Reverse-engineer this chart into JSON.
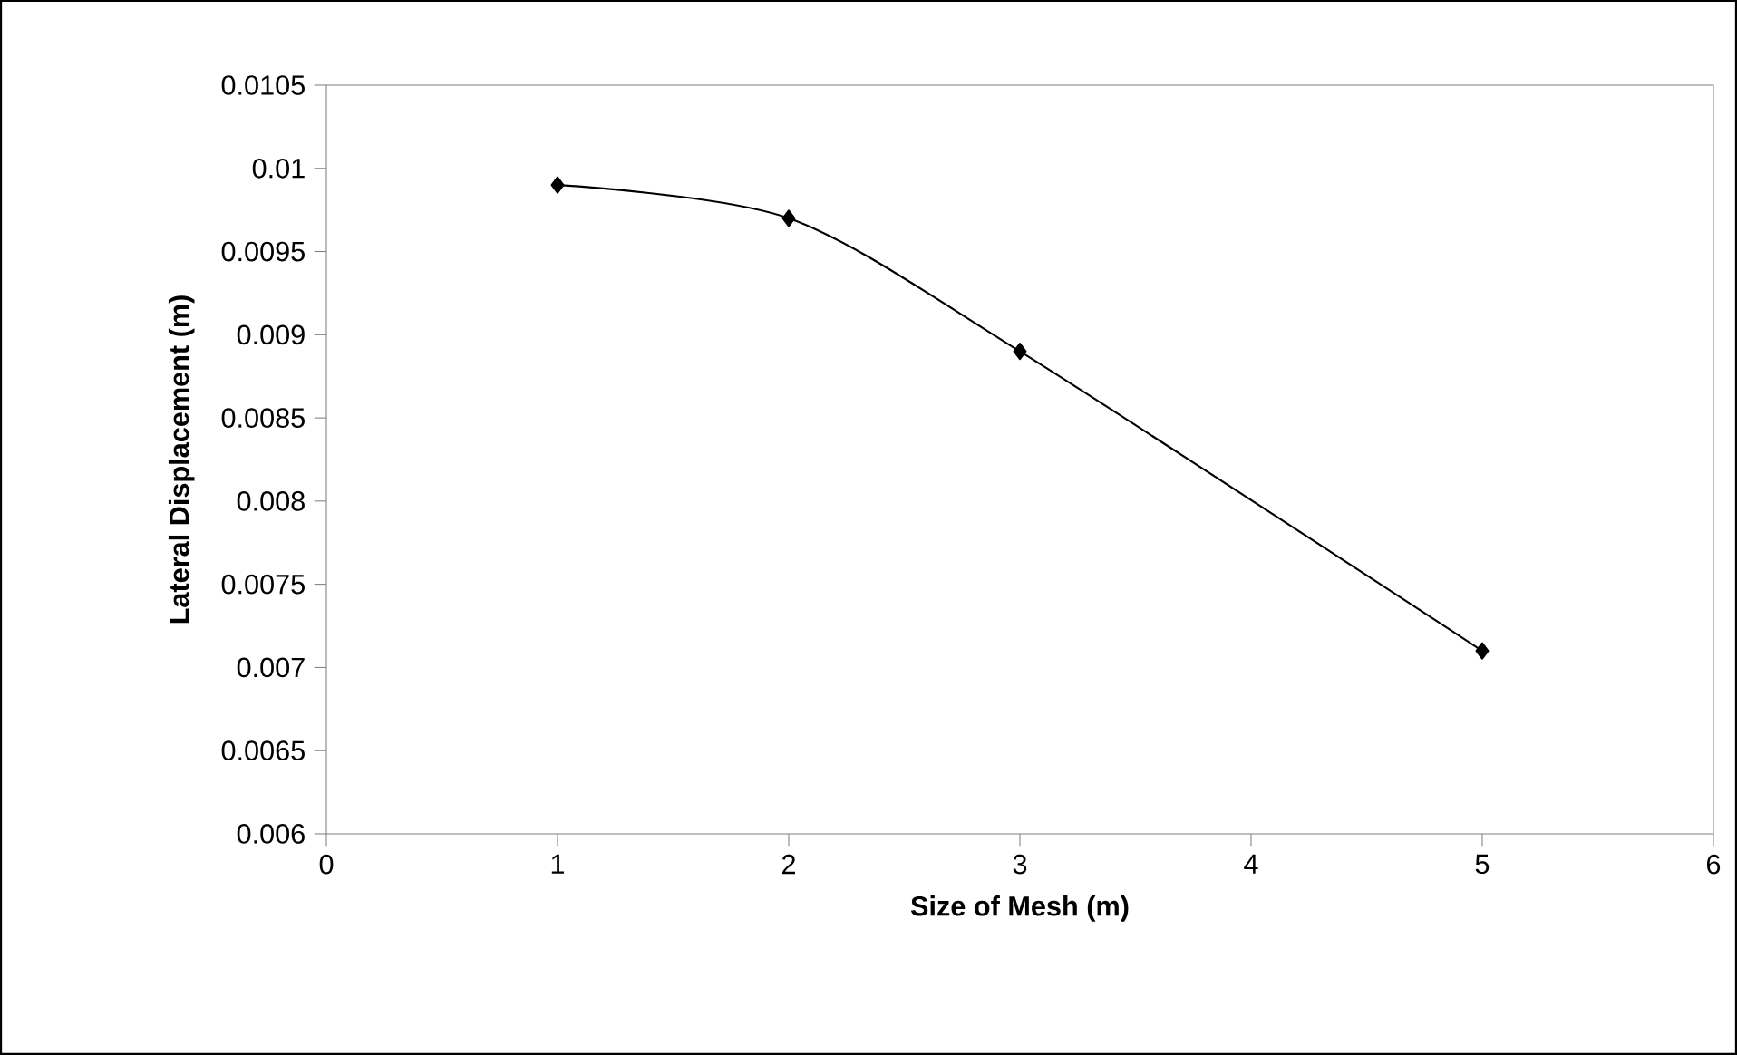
{
  "chart_data": {
    "type": "line",
    "xlabel": "Size of Mesh (m)",
    "ylabel": "Lateral Displacement (m)",
    "x": [
      1,
      2,
      3,
      5
    ],
    "series": [
      {
        "color": "#000000",
        "values": [
          0.0099,
          0.0097,
          0.0089,
          0.0071
        ]
      }
    ],
    "xlim": [
      0,
      6
    ],
    "xticks": [
      0,
      1,
      2,
      3,
      4,
      5,
      6
    ],
    "ylim": [
      0.006,
      0.0105
    ],
    "yticks": [
      0.006,
      0.0065,
      0.007,
      0.0075,
      0.008,
      0.0085,
      0.009,
      0.0095,
      0.01,
      0.0105
    ],
    "grid": false,
    "marker": "diamond",
    "line_style": "solid"
  }
}
